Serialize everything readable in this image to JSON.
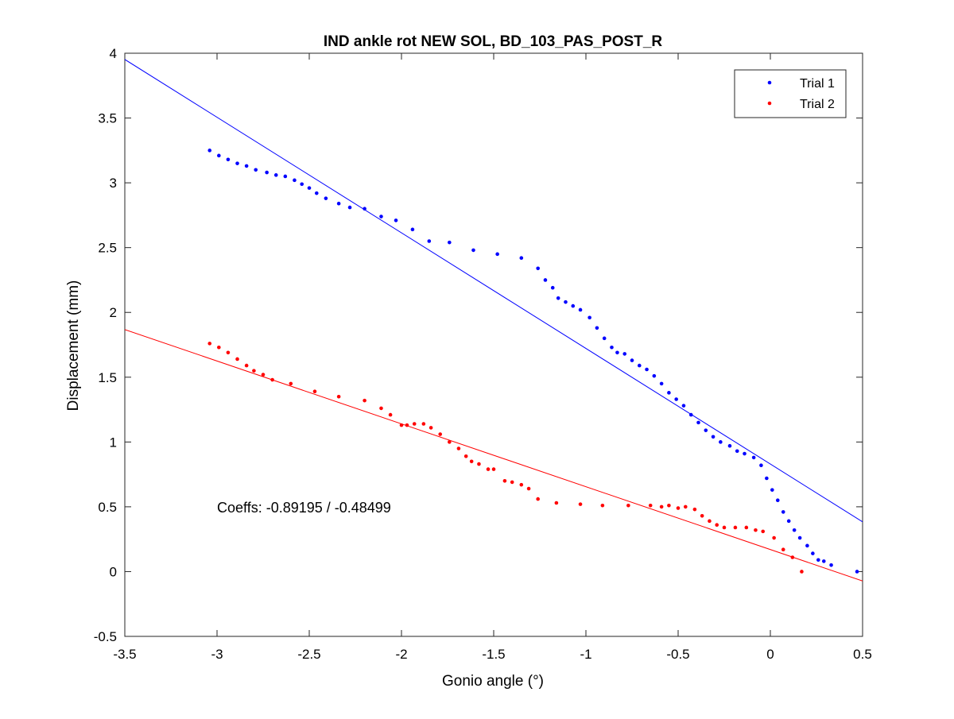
{
  "chart_data": {
    "type": "scatter",
    "title": "IND ankle rot NEW SOL, BD_103_PAS_POST_R",
    "xlabel": "Gonio angle (°)",
    "ylabel": "Displacement (mm)",
    "xlim": [
      -3.5,
      0.5
    ],
    "ylim": [
      -0.5,
      4
    ],
    "xticks": [
      -3.5,
      -3,
      -2.5,
      -2,
      -1.5,
      -1,
      -0.5,
      0,
      0.5
    ],
    "xtick_labels": [
      "-3.5",
      "-3",
      "-2.5",
      "-2",
      "-1.5",
      "-1",
      "-0.5",
      "0",
      "0.5"
    ],
    "yticks": [
      -0.5,
      0,
      0.5,
      1,
      1.5,
      2,
      2.5,
      3,
      3.5,
      4
    ],
    "ytick_labels": [
      "-0.5",
      "0",
      "0.5",
      "1",
      "1.5",
      "2",
      "2.5",
      "3",
      "3.5",
      "4"
    ],
    "grid": false,
    "legend_position": "top-right",
    "annotation": "Coeffs: -0.89195 / -0.48499",
    "series": [
      {
        "name": "Trial 1",
        "color": "#0000ff",
        "points": [
          [
            -3.04,
            3.25
          ],
          [
            -2.99,
            3.21
          ],
          [
            -2.94,
            3.18
          ],
          [
            -2.89,
            3.15
          ],
          [
            -2.84,
            3.13
          ],
          [
            -2.79,
            3.1
          ],
          [
            -2.73,
            3.08
          ],
          [
            -2.68,
            3.06
          ],
          [
            -2.63,
            3.05
          ],
          [
            -2.58,
            3.02
          ],
          [
            -2.54,
            2.99
          ],
          [
            -2.5,
            2.96
          ],
          [
            -2.46,
            2.92
          ],
          [
            -2.41,
            2.88
          ],
          [
            -2.34,
            2.84
          ],
          [
            -2.28,
            2.81
          ],
          [
            -2.2,
            2.8
          ],
          [
            -2.11,
            2.74
          ],
          [
            -2.03,
            2.71
          ],
          [
            -1.94,
            2.64
          ],
          [
            -1.85,
            2.55
          ],
          [
            -1.74,
            2.54
          ],
          [
            -1.61,
            2.48
          ],
          [
            -1.48,
            2.45
          ],
          [
            -1.35,
            2.42
          ],
          [
            -1.26,
            2.34
          ],
          [
            -1.22,
            2.25
          ],
          [
            -1.18,
            2.19
          ],
          [
            -1.15,
            2.11
          ],
          [
            -1.11,
            2.08
          ],
          [
            -1.07,
            2.05
          ],
          [
            -1.03,
            2.02
          ],
          [
            -0.98,
            1.96
          ],
          [
            -0.94,
            1.88
          ],
          [
            -0.9,
            1.8
          ],
          [
            -0.86,
            1.73
          ],
          [
            -0.83,
            1.69
          ],
          [
            -0.79,
            1.68
          ],
          [
            -0.75,
            1.63
          ],
          [
            -0.71,
            1.59
          ],
          [
            -0.67,
            1.56
          ],
          [
            -0.63,
            1.51
          ],
          [
            -0.59,
            1.45
          ],
          [
            -0.55,
            1.38
          ],
          [
            -0.51,
            1.33
          ],
          [
            -0.47,
            1.28
          ],
          [
            -0.43,
            1.21
          ],
          [
            -0.39,
            1.15
          ],
          [
            -0.35,
            1.09
          ],
          [
            -0.31,
            1.04
          ],
          [
            -0.27,
            1.0
          ],
          [
            -0.22,
            0.97
          ],
          [
            -0.18,
            0.93
          ],
          [
            -0.14,
            0.91
          ],
          [
            -0.09,
            0.88
          ],
          [
            -0.05,
            0.82
          ],
          [
            -0.02,
            0.72
          ],
          [
            0.01,
            0.63
          ],
          [
            0.04,
            0.55
          ],
          [
            0.07,
            0.46
          ],
          [
            0.1,
            0.39
          ],
          [
            0.13,
            0.32
          ],
          [
            0.16,
            0.26
          ],
          [
            0.2,
            0.2
          ],
          [
            0.23,
            0.14
          ],
          [
            0.26,
            0.09
          ],
          [
            0.29,
            0.08
          ],
          [
            0.33,
            0.05
          ],
          [
            0.47,
            0.0
          ]
        ],
        "fit_line": {
          "slope": -0.89195,
          "intercept": 0.83,
          "x_range": [
            -3.5,
            0.5
          ]
        }
      },
      {
        "name": "Trial 2",
        "color": "#ff0000",
        "points": [
          [
            -3.04,
            1.76
          ],
          [
            -2.99,
            1.73
          ],
          [
            -2.94,
            1.69
          ],
          [
            -2.89,
            1.64
          ],
          [
            -2.84,
            1.59
          ],
          [
            -2.8,
            1.55
          ],
          [
            -2.75,
            1.52
          ],
          [
            -2.7,
            1.48
          ],
          [
            -2.6,
            1.45
          ],
          [
            -2.47,
            1.39
          ],
          [
            -2.34,
            1.35
          ],
          [
            -2.2,
            1.32
          ],
          [
            -2.11,
            1.26
          ],
          [
            -2.06,
            1.21
          ],
          [
            -2.0,
            1.13
          ],
          [
            -1.97,
            1.13
          ],
          [
            -1.93,
            1.14
          ],
          [
            -1.88,
            1.14
          ],
          [
            -1.84,
            1.11
          ],
          [
            -1.79,
            1.06
          ],
          [
            -1.74,
            1.0
          ],
          [
            -1.69,
            0.95
          ],
          [
            -1.65,
            0.89
          ],
          [
            -1.62,
            0.85
          ],
          [
            -1.58,
            0.83
          ],
          [
            -1.53,
            0.79
          ],
          [
            -1.5,
            0.79
          ],
          [
            -1.44,
            0.7
          ],
          [
            -1.4,
            0.69
          ],
          [
            -1.35,
            0.67
          ],
          [
            -1.31,
            0.64
          ],
          [
            -1.26,
            0.56
          ],
          [
            -1.16,
            0.53
          ],
          [
            -1.03,
            0.52
          ],
          [
            -0.91,
            0.51
          ],
          [
            -0.77,
            0.51
          ],
          [
            -0.65,
            0.51
          ],
          [
            -0.59,
            0.5
          ],
          [
            -0.55,
            0.51
          ],
          [
            -0.5,
            0.49
          ],
          [
            -0.46,
            0.5
          ],
          [
            -0.41,
            0.48
          ],
          [
            -0.37,
            0.43
          ],
          [
            -0.33,
            0.39
          ],
          [
            -0.29,
            0.36
          ],
          [
            -0.25,
            0.34
          ],
          [
            -0.19,
            0.34
          ],
          [
            -0.13,
            0.34
          ],
          [
            -0.08,
            0.32
          ],
          [
            -0.04,
            0.31
          ],
          [
            0.02,
            0.26
          ],
          [
            0.07,
            0.17
          ],
          [
            0.12,
            0.11
          ],
          [
            0.17,
            0.0
          ]
        ],
        "fit_line": {
          "slope": -0.48499,
          "intercept": 0.17,
          "x_range": [
            -3.5,
            0.5
          ]
        }
      }
    ]
  }
}
